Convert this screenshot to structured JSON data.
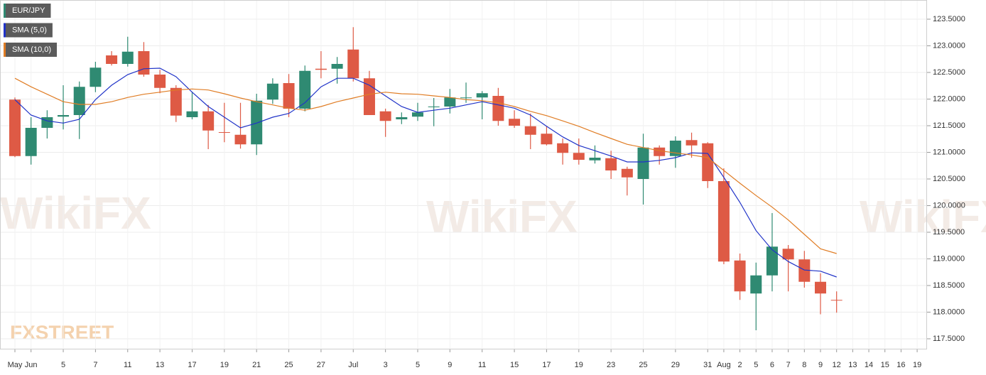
{
  "chart_data": {
    "type": "candlestick",
    "watermark": "WikiFX",
    "logo": "FXSTREET",
    "categories": [
      "May",
      "Jun",
      null,
      "5",
      null,
      "7",
      null,
      "11",
      null,
      "13",
      null,
      "17",
      null,
      "19",
      null,
      "21",
      null,
      "25",
      null,
      "27",
      null,
      "Jul",
      null,
      "3",
      null,
      "5",
      null,
      "9",
      null,
      "11",
      null,
      "15",
      null,
      "17",
      null,
      "19",
      null,
      "23",
      null,
      "25",
      null,
      "29",
      null,
      "31",
      "Aug",
      "2",
      "5",
      "6",
      "7",
      "8",
      "9",
      "12",
      "13",
      "14",
      "15",
      "16",
      "19"
    ],
    "ylim": [
      117.3,
      123.86
    ],
    "yticks": [
      {
        "value": 117.5,
        "label": "117.5000"
      },
      {
        "value": 118,
        "label": "118.0000"
      },
      {
        "value": 118.5,
        "label": "118.5000"
      },
      {
        "value": 119,
        "label": "119.0000"
      },
      {
        "value": 119.5,
        "label": "119.5000"
      },
      {
        "value": 120,
        "label": "120.0000"
      },
      {
        "value": 120.5,
        "label": "120.5000"
      },
      {
        "value": 121,
        "label": "121.0000"
      },
      {
        "value": 121.5,
        "label": "121.5000"
      },
      {
        "value": 122,
        "label": "122.0000"
      },
      {
        "value": 122.5,
        "label": "122.5000"
      },
      {
        "value": 123,
        "label": "123.0000"
      },
      {
        "value": 123.5,
        "label": "123.5000"
      }
    ],
    "grid": true,
    "series": [
      {
        "name": "EUR/JPY",
        "type": "candlestick",
        "up_color": "#2f8a72",
        "down_color": "#de5a45",
        "open": [
          121.99,
          120.93,
          121.46,
          121.67,
          121.7,
          122.23,
          122.82,
          122.66,
          122.9,
          122.46,
          122.21,
          121.66,
          121.77,
          121.38,
          121.33,
          121.15,
          121.99,
          122.3,
          121.82,
          122.57,
          122.57,
          122.93,
          122.39,
          121.77,
          121.62,
          121.67,
          121.85,
          121.86,
          122.02,
          122.03,
          122.06,
          121.63,
          121.49,
          121.35,
          121.17,
          120.99,
          120.85,
          120.89,
          120.69,
          120.5,
          121.09,
          120.93,
          121.23,
          121.17,
          120.46,
          118.97,
          118.35,
          118.69,
          119.19,
          118.99,
          118.57,
          118.23,
          null,
          null,
          null,
          null,
          null
        ],
        "high": [
          122.03,
          121.66,
          121.79,
          122.26,
          122.33,
          122.7,
          122.9,
          123.17,
          123.07,
          122.55,
          122.26,
          122.13,
          121.89,
          121.93,
          121.93,
          122.1,
          122.39,
          122.47,
          122.63,
          122.9,
          122.79,
          123.35,
          122.53,
          121.82,
          121.75,
          121.93,
          122.02,
          122.19,
          122.31,
          122.15,
          122.21,
          121.79,
          121.73,
          121.49,
          121.26,
          121.26,
          121.13,
          121.03,
          120.73,
          121.35,
          121.13,
          121.3,
          121.37,
          121.19,
          120.7,
          119.1,
          118.93,
          119.86,
          119.26,
          119.15,
          118.73,
          118.39,
          null,
          null,
          null,
          null,
          null
        ],
        "low": [
          120.91,
          120.77,
          121.26,
          121.43,
          121.25,
          122.13,
          122.63,
          122.61,
          122.42,
          122.11,
          121.57,
          121.62,
          121.06,
          121.19,
          121.07,
          120.95,
          121.91,
          121.66,
          121.77,
          122.39,
          122.29,
          122.33,
          121.7,
          121.29,
          121.53,
          121.59,
          121.49,
          121.73,
          121.93,
          121.62,
          121.5,
          121.46,
          121.06,
          121.13,
          120.77,
          120.77,
          120.79,
          120.5,
          120.19,
          120.02,
          120.77,
          120.71,
          120.9,
          120.33,
          118.9,
          118.23,
          117.66,
          118.39,
          118.39,
          118.46,
          117.96,
          117.99,
          null,
          null,
          null,
          null,
          null
        ],
        "close": [
          120.93,
          121.46,
          121.66,
          121.7,
          122.23,
          122.59,
          122.66,
          122.89,
          122.46,
          122.21,
          121.69,
          121.77,
          121.41,
          121.37,
          121.15,
          121.97,
          122.29,
          121.82,
          122.53,
          122.55,
          122.66,
          122.39,
          121.7,
          121.59,
          121.66,
          121.75,
          121.86,
          122.03,
          122.03,
          122.11,
          121.59,
          121.5,
          121.33,
          121.15,
          120.99,
          120.86,
          120.9,
          120.66,
          120.53,
          121.09,
          120.93,
          121.22,
          121.13,
          120.46,
          118.95,
          118.39,
          118.69,
          119.23,
          118.99,
          118.57,
          118.35,
          118.22,
          null,
          null,
          null,
          null,
          null
        ]
      },
      {
        "name": "SMA (5,0)",
        "type": "line",
        "color": "#2033c8",
        "values": [
          121.99,
          121.7,
          121.59,
          121.55,
          121.62,
          121.99,
          122.26,
          122.46,
          122.57,
          122.58,
          122.42,
          122.13,
          121.86,
          121.66,
          121.46,
          121.55,
          121.66,
          121.73,
          121.93,
          122.23,
          122.39,
          122.39,
          122.26,
          122.06,
          121.86,
          121.75,
          121.79,
          121.83,
          121.89,
          121.95,
          121.89,
          121.83,
          121.7,
          121.49,
          121.29,
          121.13,
          121.03,
          120.93,
          120.82,
          120.82,
          120.85,
          120.9,
          120.99,
          120.98,
          120.53,
          120.06,
          119.53,
          119.17,
          118.95,
          118.79,
          118.77,
          118.66,
          null,
          null,
          null,
          null,
          null
        ]
      },
      {
        "name": "SMA (10,0)",
        "type": "line",
        "color": "#e07d25",
        "values": [
          122.39,
          122.23,
          122.09,
          121.95,
          121.9,
          121.9,
          121.95,
          122.03,
          122.09,
          122.13,
          122.17,
          122.19,
          122.17,
          122.1,
          122.02,
          121.95,
          121.89,
          121.83,
          121.79,
          121.86,
          121.95,
          122.02,
          122.09,
          122.13,
          122.1,
          122.09,
          122.06,
          122.03,
          121.99,
          121.97,
          121.93,
          121.86,
          121.77,
          121.69,
          121.59,
          121.49,
          121.37,
          121.26,
          121.15,
          121.09,
          121.03,
          120.99,
          120.95,
          120.9,
          120.66,
          120.42,
          120.19,
          119.97,
          119.73,
          119.46,
          119.19,
          119.1,
          null,
          null,
          null,
          null,
          null
        ]
      }
    ]
  }
}
